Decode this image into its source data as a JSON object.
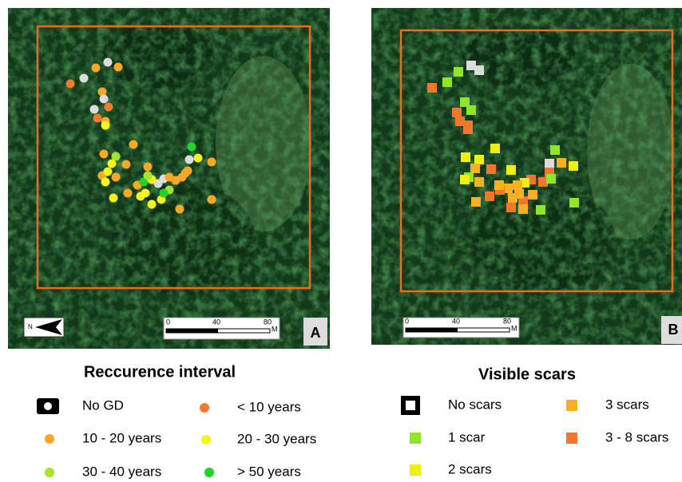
{
  "panels": [
    {
      "label": "A",
      "north": "N",
      "scale": [
        0,
        40,
        80
      ],
      "unit": "M"
    },
    {
      "label": "B",
      "scale": [
        0,
        40,
        80
      ],
      "unit": "M"
    }
  ],
  "legends": [
    {
      "title": "Reccurence interval",
      "items": [
        "No GD",
        "< 10 years",
        "10 - 20 years",
        "20 - 30 years",
        "30 - 40 years",
        "> 50 years"
      ]
    },
    {
      "title": "Visible scars",
      "items": [
        "No scars",
        "3 scars",
        "1 scar",
        "3 - 8 scars",
        "2 scars"
      ]
    }
  ]
}
